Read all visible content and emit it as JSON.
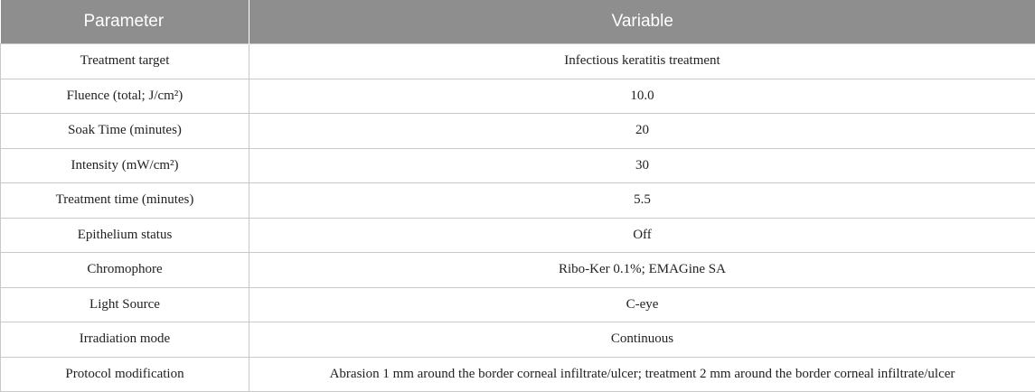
{
  "table": {
    "headers": [
      "Parameter",
      "Variable"
    ],
    "rows": [
      {
        "parameter": "Treatment target",
        "variable": "Infectious keratitis treatment"
      },
      {
        "parameter": "Fluence (total; J/cm²)",
        "variable": "10.0"
      },
      {
        "parameter": "Soak Time (minutes)",
        "variable": "20"
      },
      {
        "parameter": "Intensity (mW/cm²)",
        "variable": "30"
      },
      {
        "parameter": "Treatment time (minutes)",
        "variable": "5.5"
      },
      {
        "parameter": "Epithelium status",
        "variable": "Off"
      },
      {
        "parameter": "Chromophore",
        "variable": "Ribo-Ker 0.1%; EMAGine SA"
      },
      {
        "parameter": "Light Source",
        "variable": "C-eye"
      },
      {
        "parameter": "Irradiation mode",
        "variable": "Continuous"
      },
      {
        "parameter": "Protocol modification",
        "variable": "Abrasion 1 mm around the border corneal infiltrate/ulcer; treatment 2 mm around the border corneal infiltrate/ulcer"
      }
    ]
  }
}
